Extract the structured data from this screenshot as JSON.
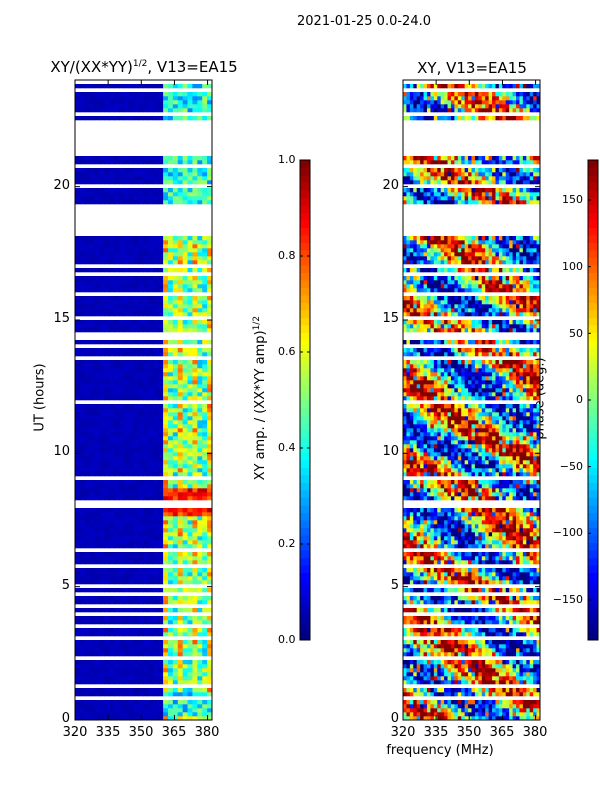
{
  "figure": {
    "suptitle": "2021-01-25 0.0-24.0",
    "xlabel": "frequency (MHz)"
  },
  "chart_data": [
    {
      "type": "heatmap",
      "title_prefix": "XY/(XX*YY)",
      "title_sup": "1/2",
      "title_suffix": ", V13=EA15",
      "xlabel": "",
      "ylabel": "UT (hours)",
      "xlim": [
        320,
        382
      ],
      "ylim": [
        0,
        24
      ],
      "xticks": [
        "320",
        "335",
        "350",
        "365",
        "380"
      ],
      "yticks": [
        "0",
        "5",
        "10",
        "15",
        "20"
      ],
      "colorbar": {
        "label_prefix": "XY amp. / (XX*YY amp)",
        "label_sup": "1/2",
        "range": [
          0.0,
          1.0
        ],
        "ticks": [
          "0.0",
          "0.2",
          "0.4",
          "0.6",
          "0.8",
          "1.0"
        ],
        "colormap": "jet"
      },
      "data_gaps_hours": [
        [
          21.1,
          22.4
        ],
        [
          18.2,
          19.3
        ]
      ],
      "active_band_mhz": [
        359,
        381
      ],
      "notes": "Low amplitude (~0.05) below 359 MHz; higher amplitudes (0.3-0.9) in 359-381 MHz band, strongest 7.5-8.5 UT"
    },
    {
      "type": "heatmap",
      "title": "XY, V13=EA15",
      "xlabel": "",
      "ylabel": "",
      "xlim": [
        320,
        382
      ],
      "ylim": [
        0,
        24
      ],
      "xticks": [
        "320",
        "335",
        "350",
        "365",
        "380"
      ],
      "yticks": [
        "0",
        "5",
        "10",
        "15",
        "20"
      ],
      "colorbar": {
        "label": "phase (deg.)",
        "range": [
          -180,
          180
        ],
        "ticks": [
          "−150",
          "−100",
          "−50",
          "0",
          "50",
          "100",
          "150"
        ],
        "tick_values": [
          -150,
          -100,
          -50,
          0,
          50,
          100,
          150
        ],
        "colormap": "jet"
      },
      "data_gaps_hours": [
        [
          21.1,
          22.4
        ],
        [
          18.2,
          19.3
        ]
      ],
      "notes": "Phase spans full range -180 to 180 deg with banded structure"
    }
  ]
}
